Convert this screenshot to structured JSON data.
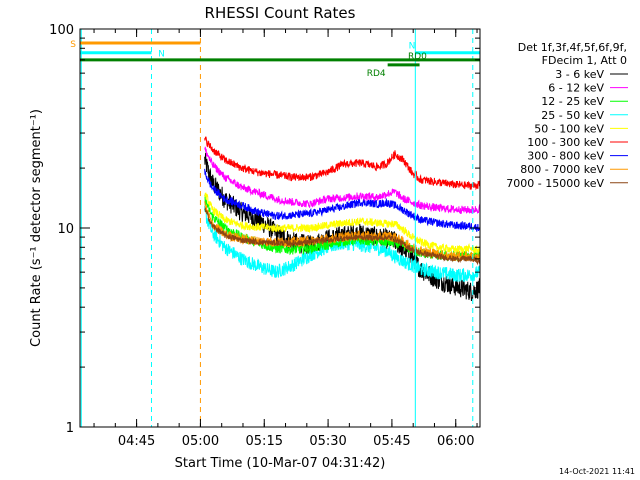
{
  "chart_data": {
    "type": "line",
    "title": "RHESSI Count Rates",
    "xlabel": "Start Time (10-Mar-07 04:31:42)",
    "ylabel": "Count Rate (s⁻¹ detector segment⁻¹)",
    "yscale": "log",
    "ylim": [
      1,
      100
    ],
    "y_tick_labels": [
      "1",
      "10",
      "100"
    ],
    "xlim_minutes": [
      0,
      94
    ],
    "x_ticks": [
      {
        "label": "04:45",
        "minute": 13.3
      },
      {
        "label": "05:00",
        "minute": 28.3
      },
      {
        "label": "05:15",
        "minute": 43.3
      },
      {
        "label": "05:30",
        "minute": 58.3
      },
      {
        "label": "05:45",
        "minute": 73.3
      },
      {
        "label": "06:00",
        "minute": 88.3
      }
    ],
    "data_start_minute": 29.3,
    "legend_header": [
      "Det 1f,3f,4f,5f,6f,9f,",
      "FDecim 1, Att 0"
    ],
    "sample_minutes": [
      29.3,
      31,
      34,
      38,
      42,
      46,
      50,
      54,
      58,
      62,
      66,
      70,
      72,
      74,
      76,
      78,
      80,
      84,
      88,
      92,
      94
    ],
    "series": [
      {
        "name": "3 - 6 keV",
        "color": "#000000",
        "noise": 0.05,
        "values": [
          22,
          17,
          14,
          12,
          11,
          9.5,
          8.5,
          8.2,
          8.8,
          9.2,
          9.4,
          9.0,
          8.8,
          8.6,
          7.8,
          7.2,
          6.2,
          5.5,
          5.1,
          4.8,
          5.0
        ]
      },
      {
        "name": "6 - 12 keV",
        "color": "#ff00ff",
        "noise": 0.02,
        "values": [
          25,
          21,
          18,
          16,
          15,
          14,
          13.5,
          13.2,
          14,
          14.2,
          14.5,
          14.3,
          14.8,
          15.2,
          14,
          13.5,
          13,
          12.6,
          12.4,
          12.3,
          12.5
        ]
      },
      {
        "name": "12 - 25 keV",
        "color": "#00ff00",
        "noise": 0.025,
        "values": [
          14,
          11.5,
          10,
          9.0,
          8.4,
          7.9,
          7.8,
          7.9,
          8.2,
          8.6,
          8.7,
          8.6,
          8.5,
          8.4,
          8.2,
          7.8,
          7.5,
          7.3,
          7.2,
          7.3,
          7.2
        ]
      },
      {
        "name": "25 - 50 keV",
        "color": "#00ffff",
        "noise": 0.035,
        "values": [
          12,
          9.5,
          8.0,
          7.0,
          6.4,
          6.0,
          6.5,
          7.3,
          8.0,
          8.4,
          8.2,
          7.9,
          7.7,
          7.2,
          6.8,
          6.5,
          6.2,
          6.0,
          5.8,
          5.8,
          6.0
        ]
      },
      {
        "name": "50 - 100 keV",
        "color": "#ffff00",
        "noise": 0.02,
        "values": [
          15,
          12.5,
          11,
          10.3,
          10.1,
          10,
          10,
          10,
          10.3,
          10.6,
          10.8,
          10.6,
          10.5,
          10.5,
          9.8,
          9.0,
          8.5,
          8.0,
          7.8,
          7.9,
          7.7
        ]
      },
      {
        "name": "100 - 300 keV",
        "color": "#ff0000",
        "noise": 0.02,
        "values": [
          28,
          25,
          22,
          20,
          19,
          18.5,
          18,
          18,
          19,
          21,
          21.2,
          20.3,
          21,
          23.5,
          22,
          19,
          17.5,
          17,
          16.5,
          16.3,
          16.5
        ]
      },
      {
        "name": "300 - 800 keV",
        "color": "#0000ff",
        "noise": 0.02,
        "values": [
          19,
          16,
          14,
          13,
          12,
          11.5,
          11.6,
          11.8,
          12.3,
          12.8,
          13.5,
          13.2,
          13.4,
          13.0,
          12.3,
          11.6,
          11.0,
          10.6,
          10.3,
          10.2,
          10.0
        ]
      },
      {
        "name": "800 - 7000 keV",
        "color": "#ff9900",
        "noise": 0.025,
        "values": [
          13,
          10.5,
          9.3,
          8.8,
          8.6,
          8.5,
          8.5,
          8.6,
          8.8,
          9.0,
          9.2,
          9.0,
          9.1,
          9.0,
          8.5,
          8.0,
          7.7,
          7.4,
          7.2,
          7.2,
          7.0
        ]
      },
      {
        "name": "7000 - 15000 keV",
        "color": "#8b4513",
        "noise": 0.015,
        "values": [
          12.5,
          10.3,
          9.2,
          8.7,
          8.5,
          8.4,
          8.4,
          8.5,
          8.7,
          8.9,
          9.0,
          8.9,
          9.0,
          8.8,
          8.3,
          7.8,
          7.5,
          7.2,
          7.0,
          7.0,
          6.8
        ]
      }
    ],
    "annotations": [
      {
        "label": "S",
        "color": "#ff9900",
        "level": 85,
        "start_minute": 0,
        "end_minute": 28.3
      },
      {
        "label": "N",
        "color": "#00ffff",
        "level": 76,
        "start_minute": 0,
        "end_minute": 16.8
      },
      {
        "label": "N",
        "color": "#00ffff",
        "level": 76,
        "start_minute": 78.8,
        "end_minute": 94
      },
      {
        "label": "RD0",
        "color": "#008000",
        "level": 70,
        "start_minute": 78.8,
        "end_minute": 79.8
      },
      {
        "label": "RD4",
        "color": "#008000",
        "level": 66,
        "start_minute": 72.3,
        "end_minute": 79.8
      },
      {
        "label": "",
        "color": "#008000",
        "level": 70,
        "start_minute": 0,
        "end_minute": 94
      }
    ],
    "vertical_markers": [
      {
        "minute": 0.3,
        "color": "#00ffff",
        "dashed": false
      },
      {
        "minute": 16.8,
        "color": "#00ffff",
        "dashed": true
      },
      {
        "minute": 28.3,
        "color": "#ff9900",
        "dashed": true
      },
      {
        "minute": 78.8,
        "color": "#00ffff",
        "dashed": false
      },
      {
        "minute": 92.3,
        "color": "#00ffff",
        "dashed": true
      }
    ]
  },
  "footer_timestamp": "14-Oct-2021 11:41"
}
